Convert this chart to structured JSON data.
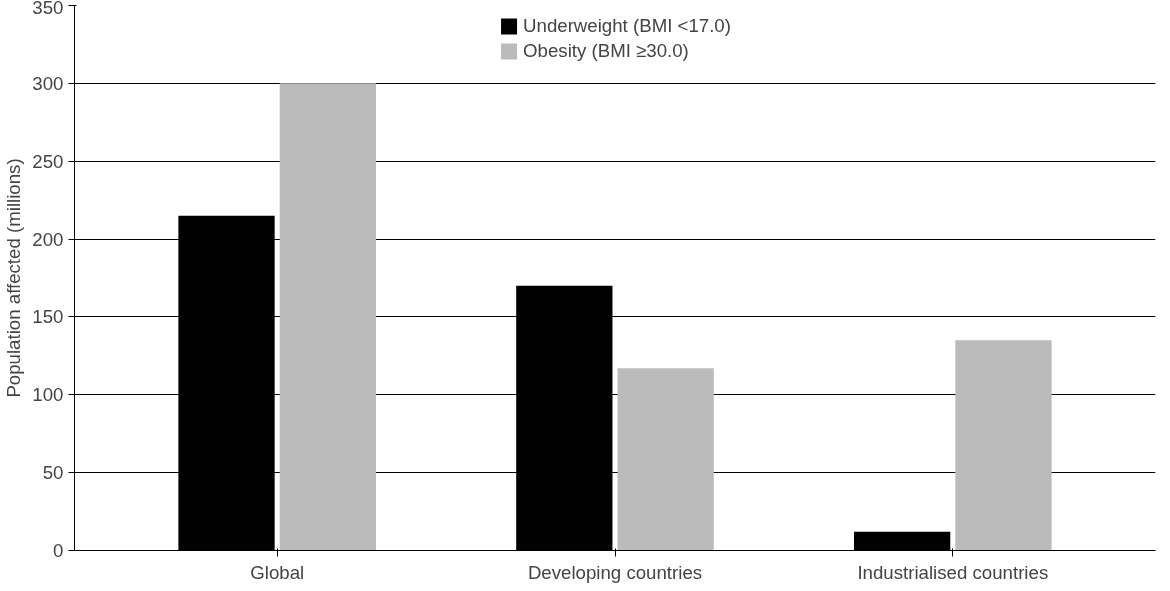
{
  "chart_data": {
    "type": "bar",
    "ylabel": "Population affected (millions)",
    "categories": [
      "Global",
      "Developing countries",
      "Industrialised countries"
    ],
    "series": [
      {
        "name": "Underweight (BMI <17.0)",
        "color": "#000000",
        "values": [
          215,
          170,
          12
        ]
      },
      {
        "name": "Obesity (BMI ≥30.0)",
        "color": "#bbbbbb",
        "values": [
          300,
          117,
          135
        ]
      }
    ],
    "ylim": [
      0,
      350
    ],
    "yticks": [
      0,
      50,
      100,
      150,
      200,
      250,
      300,
      350
    ],
    "grid": "y",
    "legend": "top"
  }
}
